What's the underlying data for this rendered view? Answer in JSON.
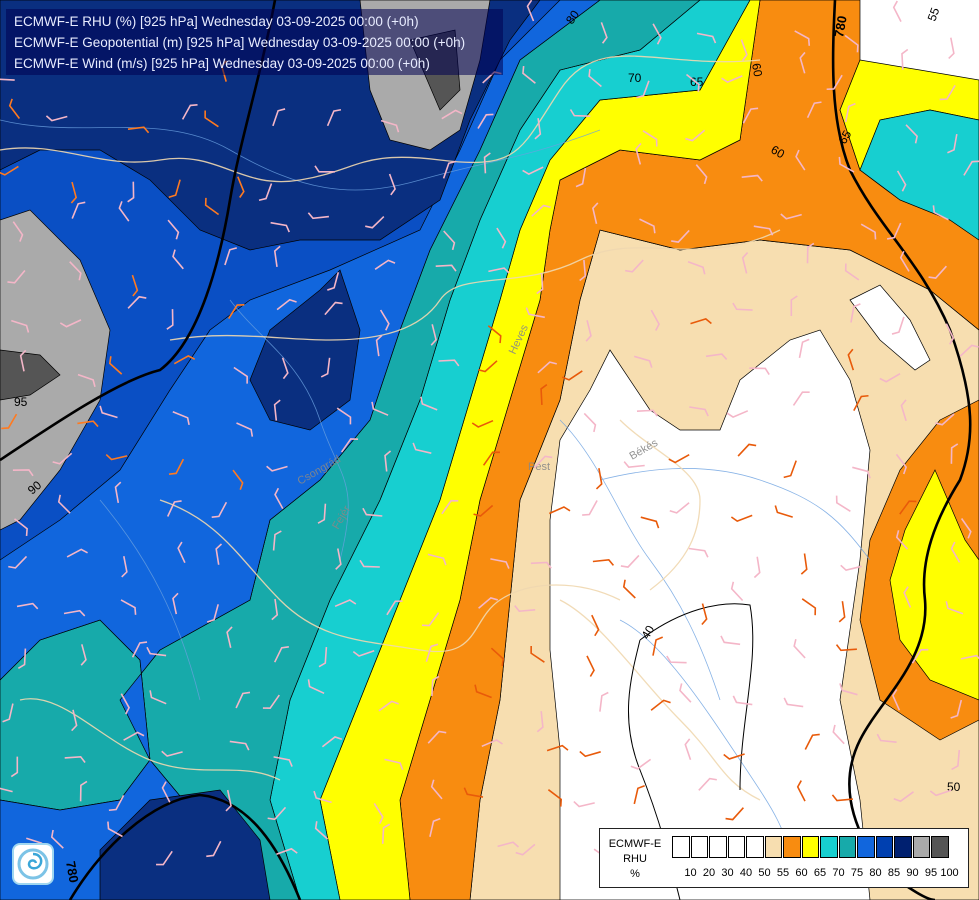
{
  "title_lines": [
    "ECMWF-E RHU (%) [925 hPa] Wednesday 03-09-2025 00:00 (+0h)",
    "ECMWF-E Geopotential (m) [925 hPa] Wednesday 03-09-2025 00:00 (+0h)",
    "ECMWF-E Wind (m/s) [925 hPa] Wednesday 03-09-2025 00:00 (+0h)"
  ],
  "legend": {
    "title_line1": "ECMWF-E",
    "title_line2": "RHU",
    "unit": "%",
    "ticks": [
      "10",
      "20",
      "30",
      "40",
      "50",
      "55",
      "60",
      "65",
      "70",
      "75",
      "80",
      "85",
      "90",
      "95",
      "100"
    ],
    "colors": [
      "#ffffff",
      "#ffffff",
      "#ffffff",
      "#ffffff",
      "#ffffff",
      "#f7deb0",
      "#f88c10",
      "#ffff00",
      "#17cfd0",
      "#17aaaa",
      "#1166dd",
      "#0040b0",
      "#002070",
      "#aaaaaa",
      "#555555"
    ]
  },
  "contour_labels": {
    "rhu_95": "95",
    "rhu_90": "90",
    "rhu_80": "80",
    "rhu_70": "70",
    "rhu_65": "65",
    "rhu_60a": "60",
    "rhu_60b": "60",
    "rhu_65b": "65",
    "rhu_55": "55",
    "rhu_50": "50",
    "rhu_40": "40",
    "geo_780a": "780",
    "geo_780b": "780"
  },
  "place_labels": {
    "heves": "Heves",
    "bekes": "Békés",
    "pest": "Pest",
    "fejer": "Fejér",
    "csongrad": "Csongrád"
  },
  "palette": {
    "white": "#ffffff",
    "tan": "#f7deb0",
    "orange": "#f88c10",
    "yellow": "#ffff00",
    "cyan": "#17cfd0",
    "teal": "#17aaaa",
    "blue": "#1166dd",
    "mid_blue": "#0a4fc4",
    "navy": "#0a2f80",
    "gray": "#aaaaaa",
    "dark_gray": "#555555"
  }
}
